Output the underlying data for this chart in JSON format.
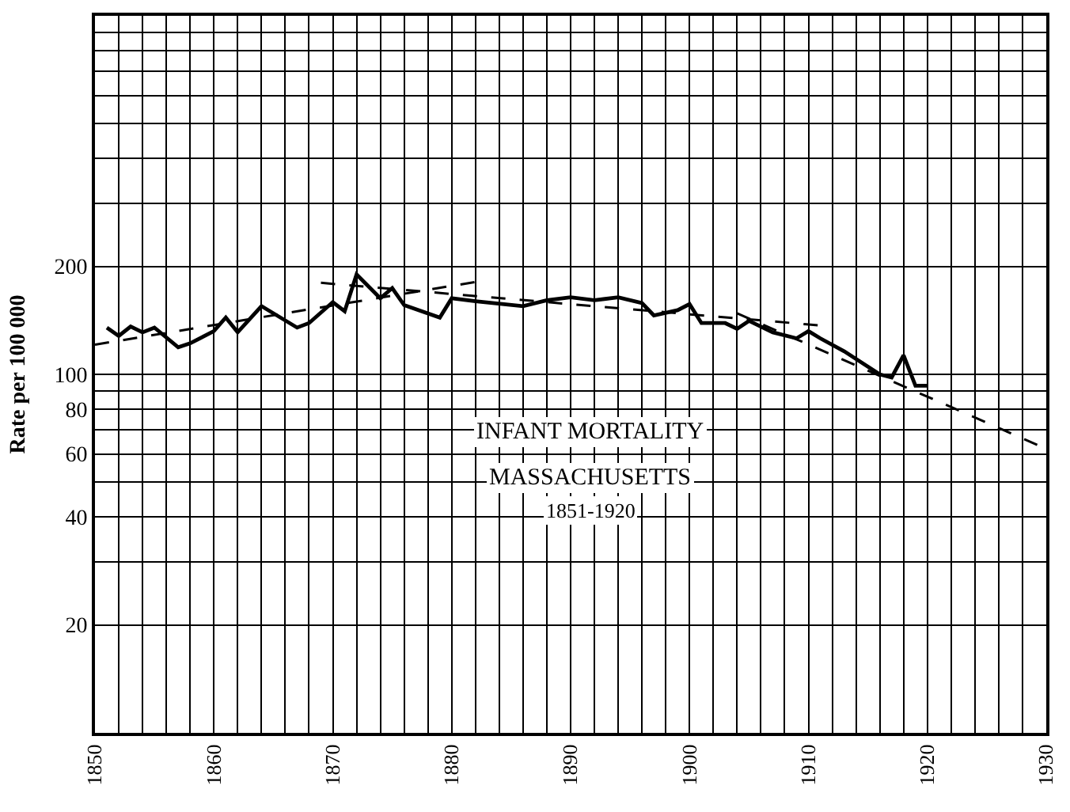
{
  "chart_data": {
    "type": "line",
    "title": "INFANT MORTALITY",
    "subtitle": "MASSACHUSETTS",
    "annotations": [
      "1851-1920"
    ],
    "ylabel": "Rate per 100 000",
    "log": "y",
    "grid": true,
    "marker": "none",
    "xlim": [
      1850,
      1930
    ],
    "xticks": [
      1850,
      {
        "value": 1852,
        "label": null
      },
      {
        "value": 1854,
        "label": null
      },
      {
        "value": 1856,
        "label": null
      },
      {
        "value": 1858,
        "label": null
      },
      1860,
      {
        "value": 1862,
        "label": null
      },
      {
        "value": 1864,
        "label": null
      },
      {
        "value": 1866,
        "label": null
      },
      {
        "value": 1868,
        "label": null
      },
      1870,
      {
        "value": 1872,
        "label": null
      },
      {
        "value": 1874,
        "label": null
      },
      {
        "value": 1876,
        "label": null
      },
      {
        "value": 1878,
        "label": null
      },
      1880,
      {
        "value": 1882,
        "label": null
      },
      {
        "value": 1884,
        "label": null
      },
      {
        "value": 1886,
        "label": null
      },
      {
        "value": 1888,
        "label": null
      },
      1890,
      {
        "value": 1892,
        "label": null
      },
      {
        "value": 1894,
        "label": null
      },
      {
        "value": 1896,
        "label": null
      },
      {
        "value": 1898,
        "label": null
      },
      1900,
      {
        "value": 1902,
        "label": null
      },
      {
        "value": 1904,
        "label": null
      },
      {
        "value": 1906,
        "label": null
      },
      {
        "value": 1908,
        "label": null
      },
      1910,
      {
        "value": 1912,
        "label": null
      },
      {
        "value": 1914,
        "label": null
      },
      {
        "value": 1916,
        "label": null
      },
      {
        "value": 1918,
        "label": null
      },
      1920,
      {
        "value": 1922,
        "label": null
      },
      {
        "value": 1924,
        "label": null
      },
      {
        "value": 1926,
        "label": null
      },
      {
        "value": 1928,
        "label": null
      },
      1930
    ],
    "ylim": [
      10,
      1000
    ],
    "yticks": [
      20,
      {
        "value": 30,
        "label": null
      },
      40,
      {
        "value": 50,
        "label": null
      },
      60,
      {
        "value": 70,
        "label": null
      },
      80,
      {
        "value": 90,
        "label": null
      },
      100,
      200,
      {
        "value": 300,
        "label": null
      },
      {
        "value": 400,
        "label": null
      },
      {
        "value": 500,
        "label": null
      },
      {
        "value": 600,
        "label": null
      },
      {
        "value": 700,
        "label": null
      },
      {
        "value": 800,
        "label": null
      },
      {
        "value": 900,
        "label": null
      }
    ],
    "series": [
      {
        "color": "#000000",
        "line_style": "solid",
        "x": [
          1851,
          1852,
          1853,
          1854,
          1855,
          1857,
          1858,
          1860,
          1861,
          1862,
          1864,
          1867,
          1868,
          1870,
          1871,
          1872,
          1874,
          1875,
          1876,
          1879,
          1880,
          1882,
          1886,
          1888,
          1890,
          1892,
          1894,
          1896,
          1897,
          1899,
          1900,
          1901,
          1903,
          1904,
          1905,
          1907,
          1909,
          1910,
          1911,
          1913,
          1916,
          1917,
          1918,
          1919,
          1920
        ],
        "values": [
          135,
          128,
          136,
          131,
          135,
          119,
          122,
          132,
          144,
          131,
          155,
          135,
          139,
          159,
          150,
          190,
          163,
          174,
          156,
          144,
          163,
          160,
          155,
          161,
          164,
          161,
          164,
          158,
          146,
          151,
          157,
          139,
          139,
          134,
          141,
          131,
          126,
          132,
          126,
          116,
          100,
          98,
          113,
          93,
          93
        ]
      },
      {
        "color": "#000000",
        "line_style": "dashed",
        "x": [
          1850,
          1882
        ],
        "values": [
          121,
          181
        ]
      },
      {
        "color": "#000000",
        "line_style": "dashed",
        "x": [
          1869,
          1912
        ],
        "values": [
          180,
          136
        ]
      },
      {
        "color": "#000000",
        "line_style": "dashed",
        "x": [
          1904,
          1930
        ],
        "values": [
          148,
          62
        ]
      }
    ]
  }
}
